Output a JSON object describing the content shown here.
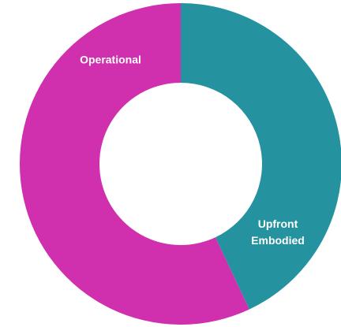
{
  "chart_data": {
    "type": "donut",
    "categories": [
      "Upfront Embodied",
      "Operational"
    ],
    "values": [
      43,
      57
    ],
    "colors": [
      "#2592a0",
      "#d02fae"
    ]
  }
}
